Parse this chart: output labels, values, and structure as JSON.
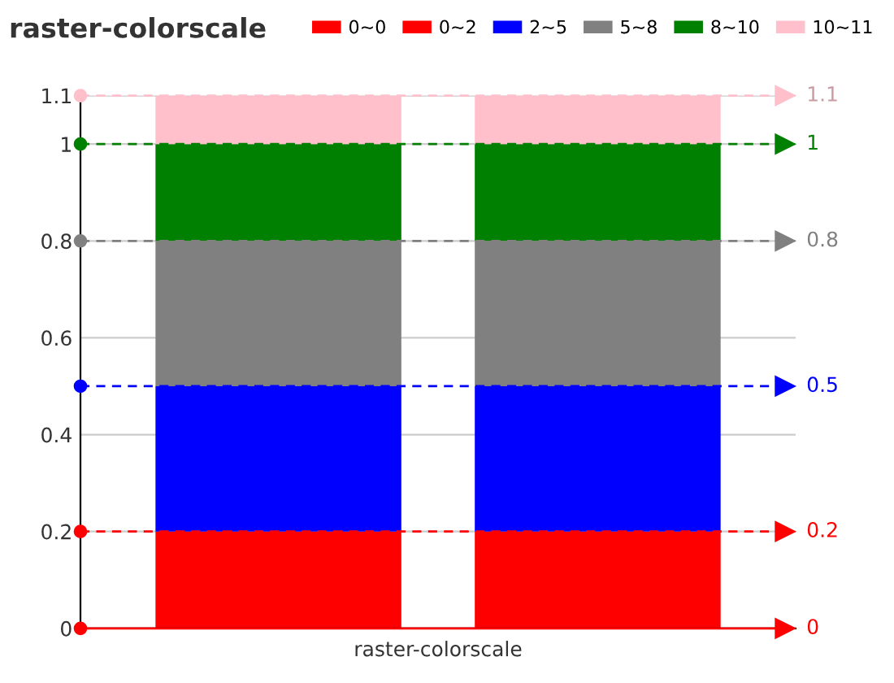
{
  "chart_data": {
    "type": "bar",
    "title": "raster-colorscale",
    "xlabel": "raster-colorscale",
    "categories": [
      null,
      null
    ],
    "stacked": true,
    "series": [
      {
        "name": "0~0",
        "color": "#ff0000",
        "values": [
          0,
          0
        ]
      },
      {
        "name": "0~2",
        "color": "#ff0000",
        "values": [
          0.2,
          0.2
        ]
      },
      {
        "name": "2~5",
        "color": "#0000ff",
        "values": [
          0.3,
          0.3
        ]
      },
      {
        "name": "5~8",
        "color": "#808080",
        "values": [
          0.3,
          0.3
        ]
      },
      {
        "name": "8~10",
        "color": "#008000",
        "values": [
          0.2,
          0.2
        ]
      },
      {
        "name": "10~11",
        "color": "#ffc0cb",
        "values": [
          0.1,
          0.1
        ]
      }
    ],
    "ylim": [
      0,
      1.1
    ],
    "yticks": [
      0,
      0.2,
      0.4,
      0.6,
      0.8,
      1,
      1.1
    ],
    "grid": "y",
    "legend": "top",
    "ref_lines": [
      {
        "axis": "y",
        "value": 0,
        "label": "0",
        "color": "#ff0000",
        "line_style": "solid"
      },
      {
        "axis": "y",
        "value": 0.2,
        "label": "0.2",
        "color": "#ff0000",
        "line_style": "dashed"
      },
      {
        "axis": "y",
        "value": 0.5,
        "label": "0.5",
        "color": "#0000ff",
        "line_style": "dashed"
      },
      {
        "axis": "y",
        "value": 0.8,
        "label": "0.8",
        "color": "#808080",
        "line_style": "dashed"
      },
      {
        "axis": "y",
        "value": 1,
        "label": "1",
        "color": "#008000",
        "line_style": "dashed"
      },
      {
        "axis": "y",
        "value": 1.1,
        "label": "1.1",
        "color": "#ffc0cb",
        "line_style": "dashed"
      }
    ]
  }
}
